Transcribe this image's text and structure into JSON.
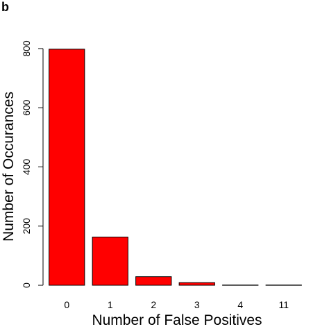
{
  "panel_label": "b",
  "chart_data": {
    "type": "bar",
    "categories": [
      "0",
      "1",
      "2",
      "3",
      "4",
      "11"
    ],
    "values": [
      798,
      163,
      29,
      9,
      1,
      1
    ],
    "xlabel": "Number of False Positives",
    "ylabel": "Number of Occurances",
    "ylim": [
      0,
      800
    ],
    "yticks": [
      0,
      200,
      400,
      600,
      800
    ],
    "bar_color": "#ff0000",
    "bar_stroke": "#000000",
    "grid": false
  }
}
